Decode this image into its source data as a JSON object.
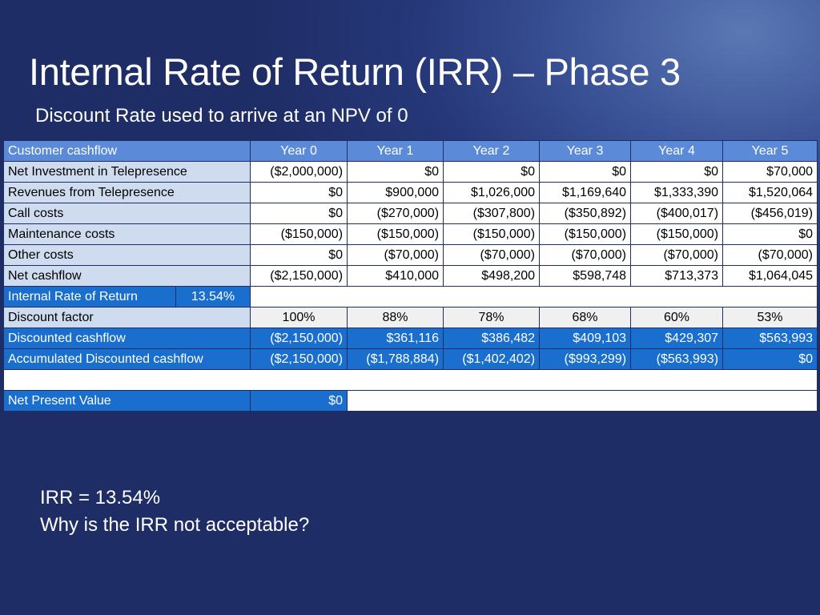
{
  "slide": {
    "title": "Internal Rate of Return (IRR) – Phase 3",
    "subtitle": "Discount Rate used to arrive at an NPV of 0",
    "bottom_line1": "IRR = 13.54%",
    "bottom_line2": "Why is the IRR not acceptable?"
  },
  "table": {
    "header": [
      "Customer cashflow",
      "Year 0",
      "Year 1",
      "Year 2",
      "Year 3",
      "Year 4",
      "Year 5"
    ],
    "rows": [
      {
        "label": "Net Investment in Telepresence",
        "values": [
          "($2,000,000)",
          "$0",
          "$0",
          "$0",
          "$0",
          "$70,000"
        ]
      },
      {
        "label": "Revenues from Telepresence",
        "values": [
          "$0",
          "$900,000",
          "$1,026,000",
          "$1,169,640",
          "$1,333,390",
          "$1,520,064"
        ]
      },
      {
        "label": "Call costs",
        "values": [
          "$0",
          "($270,000)",
          "($307,800)",
          "($350,892)",
          "($400,017)",
          "($456,019)"
        ]
      },
      {
        "label": "Maintenance costs",
        "values": [
          "($150,000)",
          "($150,000)",
          "($150,000)",
          "($150,000)",
          "($150,000)",
          "$0"
        ]
      },
      {
        "label": "Other costs",
        "values": [
          "$0",
          "($70,000)",
          "($70,000)",
          "($70,000)",
          "($70,000)",
          "($70,000)"
        ]
      },
      {
        "label": "Net cashflow",
        "values": [
          "($2,150,000)",
          "$410,000",
          "$498,200",
          "$598,748",
          "$713,373",
          "$1,064,045"
        ]
      }
    ],
    "irr": {
      "label": "Internal Rate of Return",
      "value": "13.54%"
    },
    "discount_factor": {
      "label": "Discount factor",
      "values": [
        "100%",
        "88%",
        "78%",
        "68%",
        "60%",
        "53%"
      ]
    },
    "discounted_cashflow": {
      "label": "Discounted cashflow",
      "values": [
        "($2,150,000)",
        "$361,116",
        "$386,482",
        "$409,103",
        "$429,307",
        "$563,993"
      ]
    },
    "accumulated": {
      "label": "Accumulated Discounted cashflow",
      "values": [
        "($2,150,000)",
        "($1,788,884)",
        "($1,402,402)",
        "($993,299)",
        "($563,993)",
        "$0"
      ]
    },
    "npv": {
      "label": "Net Present Value",
      "value": "$0"
    }
  },
  "colors": {
    "background": "#26387a",
    "header_blue": "#5a8ad8",
    "highlight_blue": "#1a6fce",
    "label_light_blue": "#cfdcf0",
    "grey_row": "#f0f0f0"
  }
}
